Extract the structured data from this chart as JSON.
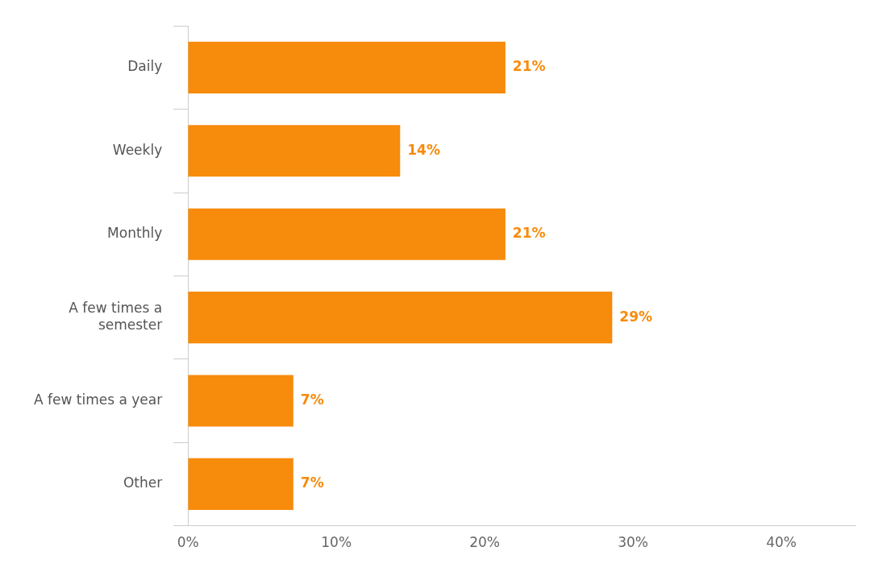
{
  "chart_data": {
    "type": "bar",
    "orientation": "horizontal",
    "categories": [
      "Daily",
      "Weekly",
      "Monthly",
      "A few times a semester",
      "A few times a year",
      "Other"
    ],
    "values": [
      21.4,
      14.3,
      21.4,
      28.6,
      7.1,
      7.1
    ],
    "value_labels": [
      "21%",
      "14%",
      "21%",
      "29%",
      "7%",
      "7%"
    ],
    "color": "#f78b0c",
    "xlim": [
      0,
      45
    ],
    "xticks": [
      {
        "value": 0,
        "label": "0%"
      },
      {
        "value": 10,
        "label": "10%"
      },
      {
        "value": 20,
        "label": "20%"
      },
      {
        "value": 30,
        "label": "30%"
      },
      {
        "value": 40,
        "label": "40%"
      }
    ],
    "grid": false,
    "legend": false
  }
}
